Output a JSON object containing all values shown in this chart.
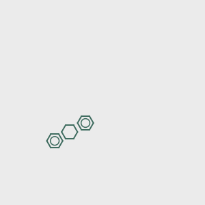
{
  "bg_color": "#ebebeb",
  "figsize": [
    3.0,
    3.0
  ],
  "dpi": 100,
  "bond_color": "#3d6b5e",
  "red": "#cc0000",
  "blue": "#1a1aee",
  "yellow": "#aaaa00",
  "gray": "#888888",
  "black": "#222222"
}
